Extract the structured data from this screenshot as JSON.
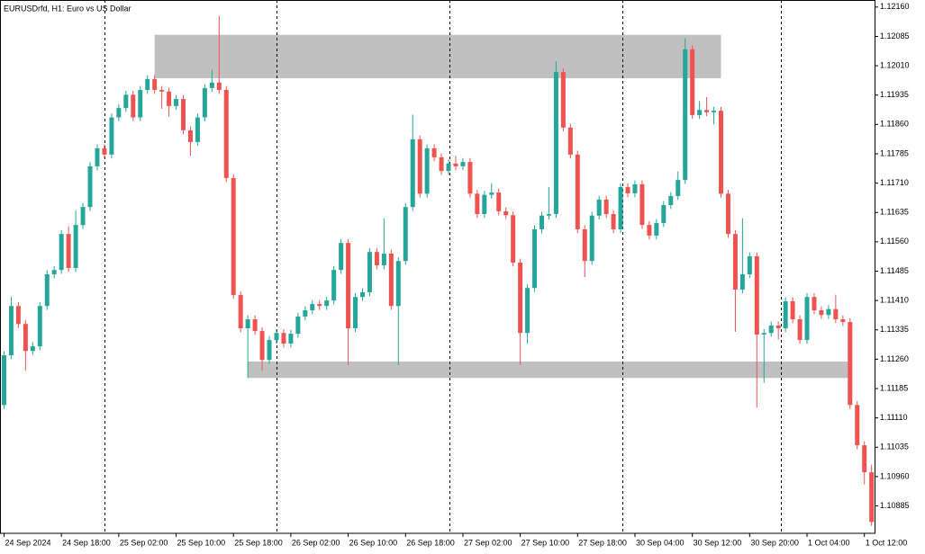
{
  "chart_data": {
    "type": "candlestick",
    "title": "EURUSDrfd, H1:  Euro vs US Dollar",
    "up_color": "#26a69a",
    "down_color": "#ef5350",
    "zone_color": "#c0c0c0",
    "open": [
      1.11143,
      1.1127,
      1.11396,
      1.1135,
      1.11281,
      1.11293,
      1.11396,
      1.11477,
      1.11488,
      1.1158,
      1.11493,
      1.11603,
      1.11649,
      1.11753,
      1.11799,
      1.11783,
      1.11878,
      1.11902,
      1.11936,
      1.11878,
      1.11948,
      1.11976,
      1.11948,
      1.11944,
      1.11907,
      1.11925,
      1.11845,
      1.11815,
      1.11878,
      1.11953,
      1.11967,
      1.11948,
      1.11723,
      1.11424,
      1.11339,
      1.11362,
      1.11332,
      1.11258,
      1.11309,
      1.11327,
      1.113,
      1.11325,
      1.11369,
      1.11385,
      1.11401,
      1.11396,
      1.1141,
      1.11488,
      1.11557,
      1.11339,
      1.11419,
      1.11431,
      1.11534,
      1.115,
      1.1153,
      1.11396,
      1.11511,
      1.11649,
      1.11822,
      1.11683,
      1.11799,
      1.11776,
      1.11741,
      1.1176,
      1.11753,
      1.11764,
      1.11683,
      1.11631,
      1.1168,
      1.11686,
      1.11638,
      1.11628,
      1.11507,
      1.11327,
      1.11442,
      1.11592,
      1.11627,
      1.11631,
      1.11994,
      1.11852,
      1.11783,
      1.11592,
      1.11511,
      1.11627,
      1.11668,
      1.11631,
      1.11592,
      1.117,
      1.11684,
      1.11707,
      1.11603,
      1.11576,
      1.11608,
      1.11654,
      1.11677,
      1.11718,
      1.12052,
      1.11884,
      1.11897,
      1.11891,
      1.11895,
      1.11683,
      1.1158,
      1.11438,
      1.11477,
      1.11523,
      1.11323,
      1.11327,
      1.11346,
      1.11339,
      1.11408,
      1.11362,
      1.11309,
      1.11419,
      1.11385,
      1.11373,
      1.11388,
      1.11362,
      1.11355,
      1.11143,
      1.1104,
      1.10971
    ],
    "high": [
      1.1128,
      1.1142,
      1.11406,
      1.1136,
      1.11303,
      1.11406,
      1.11487,
      1.11498,
      1.1159,
      1.116,
      1.1164,
      1.11659,
      1.11763,
      1.11809,
      1.11809,
      1.11888,
      1.11912,
      1.11946,
      1.11946,
      1.11958,
      1.11986,
      1.11986,
      1.11958,
      1.11954,
      1.11935,
      1.11935,
      1.11855,
      1.11888,
      1.11963,
      1.12,
      1.12137,
      1.11958,
      1.11733,
      1.11434,
      1.11372,
      1.11372,
      1.11342,
      1.11319,
      1.11337,
      1.11337,
      1.11335,
      1.11379,
      1.11395,
      1.11411,
      1.11411,
      1.1142,
      1.11498,
      1.11567,
      1.11567,
      1.11429,
      1.11441,
      1.11544,
      1.11544,
      1.1162,
      1.1154,
      1.11521,
      1.11659,
      1.11885,
      1.11832,
      1.11809,
      1.11809,
      1.11786,
      1.1177,
      1.1178,
      1.11774,
      1.11774,
      1.11693,
      1.1169,
      1.1171,
      1.11696,
      1.11648,
      1.11638,
      1.11517,
      1.11452,
      1.11602,
      1.11637,
      1.117,
      1.12021,
      1.12004,
      1.11862,
      1.11793,
      1.11602,
      1.11637,
      1.11678,
      1.11678,
      1.11641,
      1.1171,
      1.1171,
      1.11717,
      1.11717,
      1.11613,
      1.11618,
      1.11664,
      1.11687,
      1.1174,
      1.1208,
      1.12062,
      1.1192,
      1.1193,
      1.11905,
      1.11905,
      1.11693,
      1.1159,
      1.1162,
      1.11533,
      1.11533,
      1.11337,
      1.11356,
      1.11356,
      1.11418,
      1.11418,
      1.11372,
      1.11429,
      1.11429,
      1.11395,
      1.11398,
      1.11425,
      1.11372,
      1.11365,
      1.11153,
      1.1105,
      1.1099
    ],
    "low": [
      1.11133,
      1.1126,
      1.1134,
      1.1123,
      1.11271,
      1.11283,
      1.11386,
      1.11467,
      1.11478,
      1.11483,
      1.11483,
      1.11593,
      1.11639,
      1.11743,
      1.11773,
      1.11773,
      1.11868,
      1.11892,
      1.11868,
      1.11868,
      1.11938,
      1.11938,
      1.119,
      1.1188,
      1.11897,
      1.11835,
      1.1178,
      1.11805,
      1.11868,
      1.11943,
      1.11938,
      1.11713,
      1.11414,
      1.11329,
      1.11212,
      1.11322,
      1.1123,
      1.11248,
      1.11299,
      1.1129,
      1.1129,
      1.11315,
      1.11359,
      1.11375,
      1.11386,
      1.11386,
      1.114,
      1.11478,
      1.11245,
      1.11329,
      1.11409,
      1.11421,
      1.1149,
      1.1149,
      1.11386,
      1.11245,
      1.11501,
      1.11639,
      1.11673,
      1.11673,
      1.11766,
      1.11731,
      1.11731,
      1.11743,
      1.11743,
      1.11673,
      1.11621,
      1.11621,
      1.1167,
      1.11628,
      1.11618,
      1.11497,
      1.11245,
      1.113,
      1.11432,
      1.11582,
      1.11617,
      1.11621,
      1.11842,
      1.11773,
      1.11582,
      1.1147,
      1.11501,
      1.11617,
      1.11621,
      1.11582,
      1.11582,
      1.11674,
      1.11674,
      1.11593,
      1.11566,
      1.11566,
      1.11598,
      1.11644,
      1.11667,
      1.11708,
      1.11874,
      1.11874,
      1.11881,
      1.1186,
      1.11673,
      1.1157,
      1.1133,
      1.11428,
      1.11467,
      1.11136,
      1.112,
      1.11317,
      1.1131,
      1.11329,
      1.11352,
      1.11299,
      1.11299,
      1.11375,
      1.11363,
      1.11363,
      1.11352,
      1.11345,
      1.11133,
      1.1103,
      1.1094,
      1.10834
    ],
    "close": [
      1.1127,
      1.11396,
      1.1135,
      1.11281,
      1.11293,
      1.11396,
      1.11477,
      1.11488,
      1.1158,
      1.11493,
      1.11603,
      1.11649,
      1.11753,
      1.11799,
      1.11783,
      1.11878,
      1.11902,
      1.11936,
      1.11878,
      1.11948,
      1.11976,
      1.11948,
      1.11944,
      1.11907,
      1.11925,
      1.11845,
      1.11815,
      1.11878,
      1.11953,
      1.11967,
      1.11948,
      1.11723,
      1.11424,
      1.11339,
      1.11362,
      1.11332,
      1.11258,
      1.11309,
      1.11327,
      1.113,
      1.11325,
      1.11369,
      1.11385,
      1.11401,
      1.11396,
      1.1141,
      1.11488,
      1.11557,
      1.11339,
      1.11419,
      1.11431,
      1.11534,
      1.115,
      1.1153,
      1.11396,
      1.11511,
      1.11649,
      1.11822,
      1.11683,
      1.11799,
      1.11776,
      1.11741,
      1.1176,
      1.11753,
      1.11764,
      1.11683,
      1.11631,
      1.1168,
      1.11686,
      1.11638,
      1.11628,
      1.11507,
      1.11327,
      1.11442,
      1.11592,
      1.11627,
      1.11631,
      1.11994,
      1.11852,
      1.11783,
      1.11592,
      1.11511,
      1.11627,
      1.11668,
      1.11631,
      1.11592,
      1.117,
      1.11684,
      1.11707,
      1.11603,
      1.11576,
      1.11608,
      1.11654,
      1.11677,
      1.11718,
      1.12052,
      1.11884,
      1.11897,
      1.11891,
      1.11895,
      1.11683,
      1.1158,
      1.11438,
      1.11477,
      1.11523,
      1.11323,
      1.11327,
      1.11346,
      1.11339,
      1.11408,
      1.11362,
      1.11309,
      1.11419,
      1.11385,
      1.11373,
      1.11388,
      1.11362,
      1.11355,
      1.11143,
      1.1104,
      1.10971,
      1.10844
    ],
    "zones": [
      {
        "from": 21,
        "to": 100,
        "high": 1.12089,
        "low": 1.11978
      },
      {
        "from": 34,
        "to": 118,
        "high": 1.11254,
        "low": 1.11212
      }
    ],
    "ylim": [
      1.10815,
      1.12178
    ],
    "yticks": [
      {
        "value": 1.1216,
        "label": "1.12160"
      },
      {
        "value": 1.12085,
        "label": "1.12085"
      },
      {
        "value": 1.1201,
        "label": "1.12010"
      },
      {
        "value": 1.11935,
        "label": "1.11935"
      },
      {
        "value": 1.1186,
        "label": "1.11860"
      },
      {
        "value": 1.11785,
        "label": "1.11785"
      },
      {
        "value": 1.1171,
        "label": "1.11710"
      },
      {
        "value": 1.11635,
        "label": "1.11635"
      },
      {
        "value": 1.1156,
        "label": "1.11560"
      },
      {
        "value": 1.11485,
        "label": "1.11485"
      },
      {
        "value": 1.1141,
        "label": "1.11410"
      },
      {
        "value": 1.11335,
        "label": "1.11335"
      },
      {
        "value": 1.1126,
        "label": "1.11260"
      },
      {
        "value": 1.11185,
        "label": "1.11185"
      },
      {
        "value": 1.1111,
        "label": "1.11110"
      },
      {
        "value": 1.11035,
        "label": "1.11035"
      },
      {
        "value": 1.1096,
        "label": "1.10960"
      },
      {
        "value": 1.10885,
        "label": "1.10885"
      }
    ],
    "xticks": [
      {
        "value": 0,
        "label": "24 Sep 2024"
      },
      {
        "value": 8,
        "label": "24 Sep 18:00"
      },
      {
        "value": 16,
        "label": "25 Sep 02:00"
      },
      {
        "value": 24,
        "label": "25 Sep 10:00"
      },
      {
        "value": 32,
        "label": "25 Sep 18:00"
      },
      {
        "value": 40,
        "label": "26 Sep 02:00"
      },
      {
        "value": 48,
        "label": "26 Sep 10:00"
      },
      {
        "value": 56,
        "label": "26 Sep 18:00"
      },
      {
        "value": 64,
        "label": "27 Sep 02:00"
      },
      {
        "value": 72,
        "label": "27 Sep 10:00"
      },
      {
        "value": 80,
        "label": "27 Sep 18:00"
      },
      {
        "value": 88,
        "label": "30 Sep 04:00"
      },
      {
        "value": 96,
        "label": "30 Sep 12:00"
      },
      {
        "value": 104,
        "label": "30 Sep 20:00"
      },
      {
        "value": 112,
        "label": "1 Oct 04:00"
      },
      {
        "value": 120,
        "label": "1 Oct 12:00"
      }
    ]
  }
}
